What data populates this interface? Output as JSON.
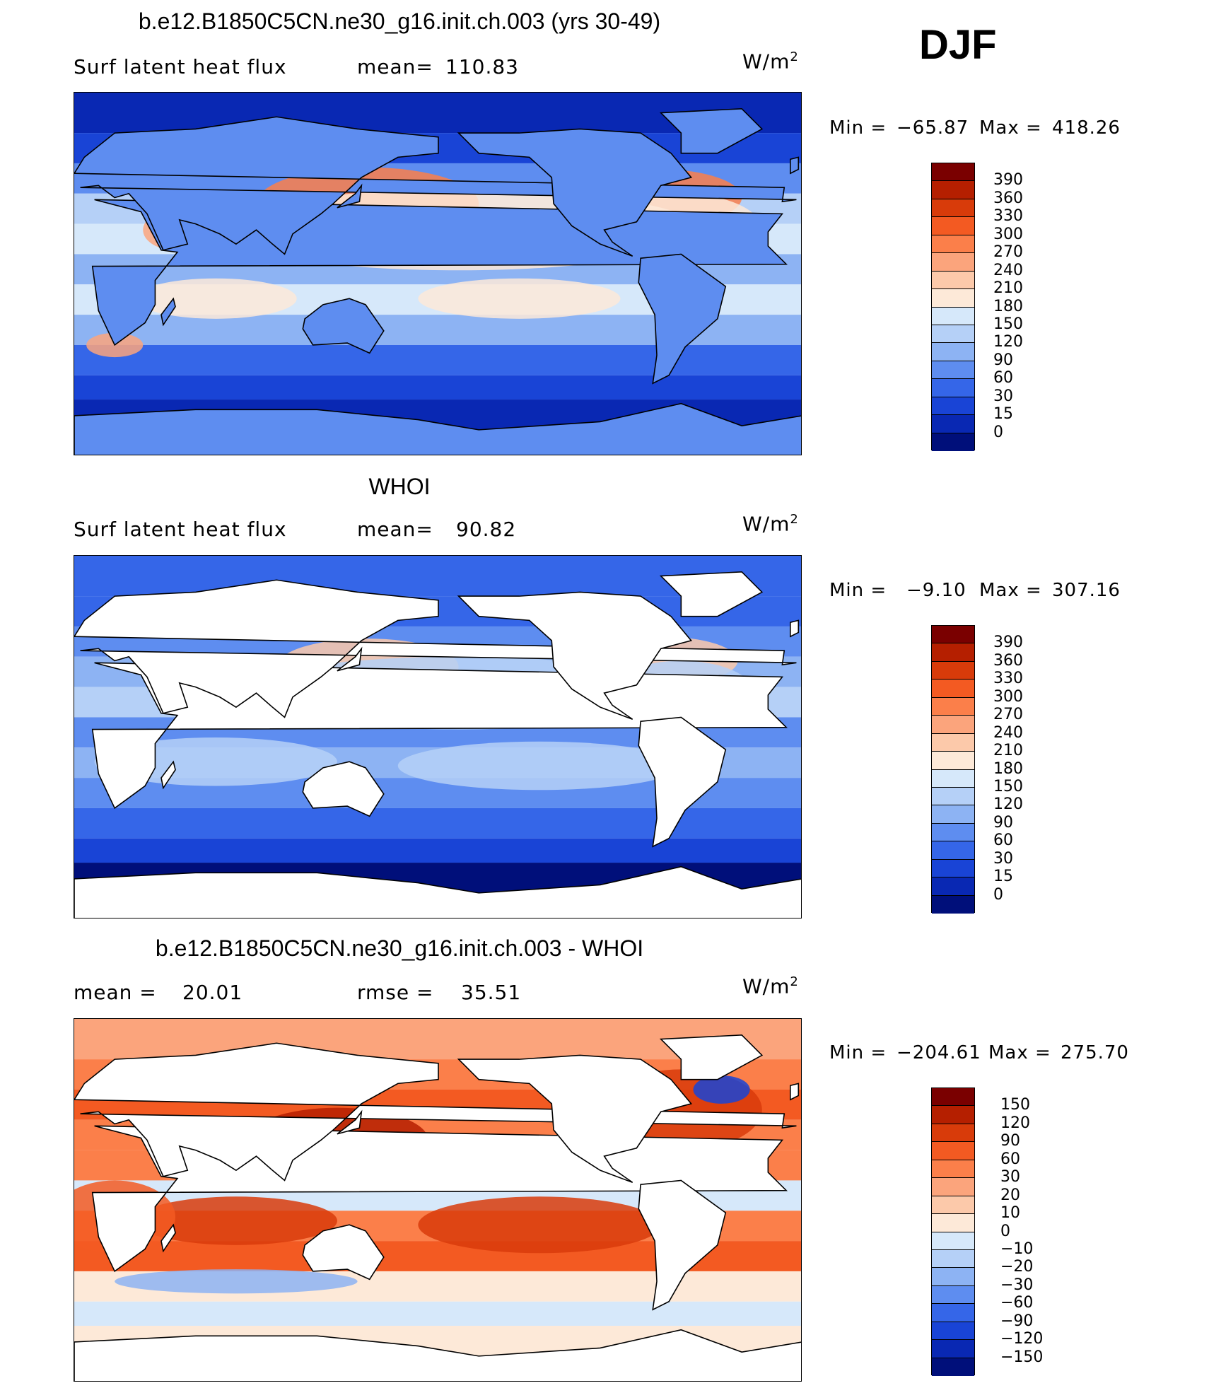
{
  "season": "DJF",
  "chart_data": [
    {
      "type": "heatmap",
      "title": "b.e12.B1850C5CN.ne30_g16.init.ch.003 (yrs 30-49)",
      "left_label": "Surf latent heat flux",
      "stat_label": "mean=",
      "stat_value": "110.83",
      "units": "W/m",
      "units_exp": "2",
      "min_label": "Min =",
      "min_value": "−65.87",
      "max_label": "Max =",
      "max_value": "418.26",
      "colorbar_levels": [
        "390",
        "360",
        "330",
        "300",
        "270",
        "240",
        "210",
        "180",
        "150",
        "120",
        "90",
        "60",
        "30",
        "15",
        "0"
      ],
      "colorbar_colors": [
        "#7a0000",
        "#b51f00",
        "#d83b0a",
        "#f35a22",
        "#fb7f4a",
        "#fba47c",
        "#fcc9aa",
        "#fde9d8",
        "#d6e8fa",
        "#b5d0f7",
        "#8db3f3",
        "#5e8df0",
        "#3566e8",
        "#1944d6",
        "#0928b3",
        "#000f7a"
      ],
      "land_masked": false
    },
    {
      "type": "heatmap",
      "title": "WHOI",
      "left_label": "Surf latent heat flux",
      "stat_label": "mean=",
      "stat_value": "90.82",
      "units": "W/m",
      "units_exp": "2",
      "min_label": "Min =",
      "min_value": "−9.10",
      "max_label": "Max =",
      "max_value": "307.16",
      "colorbar_levels": [
        "390",
        "360",
        "330",
        "300",
        "270",
        "240",
        "210",
        "180",
        "150",
        "120",
        "90",
        "60",
        "30",
        "15",
        "0"
      ],
      "colorbar_colors": [
        "#7a0000",
        "#b51f00",
        "#d83b0a",
        "#f35a22",
        "#fb7f4a",
        "#fba47c",
        "#fcc9aa",
        "#fde9d8",
        "#d6e8fa",
        "#b5d0f7",
        "#8db3f3",
        "#5e8df0",
        "#3566e8",
        "#1944d6",
        "#0928b3",
        "#000f7a"
      ],
      "land_masked": true
    },
    {
      "type": "heatmap",
      "title": "b.e12.B1850C5CN.ne30_g16.init.ch.003 - WHOI",
      "left_label": "mean =",
      "left_value": "20.01",
      "stat_label": "rmse =",
      "stat_value": "35.51",
      "units": "W/m",
      "units_exp": "2",
      "min_label": "Min =",
      "min_value": "−204.61",
      "max_label": "Max =",
      "max_value": "275.70",
      "colorbar_levels": [
        "150",
        "120",
        "90",
        "60",
        "30",
        "20",
        "10",
        "0",
        "−10",
        "−20",
        "−30",
        "−60",
        "−90",
        "−120",
        "−150"
      ],
      "colorbar_colors": [
        "#7a0000",
        "#b51f00",
        "#d83b0a",
        "#f35a22",
        "#fb7f4a",
        "#fba47c",
        "#fcc9aa",
        "#fde9d8",
        "#d6e8fa",
        "#b5d0f7",
        "#8db3f3",
        "#5e8df0",
        "#3566e8",
        "#1944d6",
        "#0928b3",
        "#000f7a"
      ],
      "land_masked": true
    }
  ]
}
